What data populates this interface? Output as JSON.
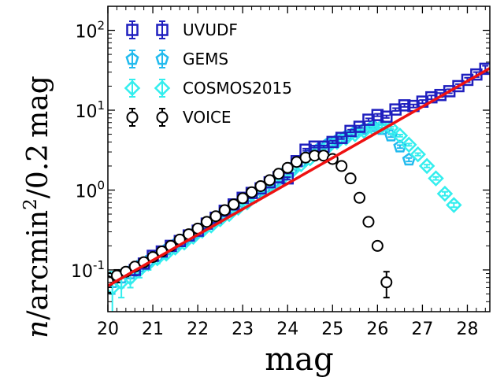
{
  "chart_data": {
    "type": "scatter",
    "xlabel": "mag",
    "ylabel": "n/arcmin²/0.2 mag",
    "ylabel_parts": {
      "n": "n",
      "slash1": "/",
      "arcmin": "arcmin",
      "exp": "2",
      "slash2": "/",
      "num": "0.2",
      "mag": "mag"
    },
    "xlim": [
      20,
      28.5
    ],
    "ylim": [
      0.03,
      200
    ],
    "yscale": "log",
    "grid": false,
    "legend_position": "top-left",
    "x_ticks": [
      "20",
      "21",
      "22",
      "23",
      "24",
      "25",
      "26",
      "27",
      "28"
    ],
    "y_ticks": [
      {
        "value": 0.1,
        "base": "10",
        "exp": "-1"
      },
      {
        "value": 1,
        "base": "10",
        "exp": "0"
      },
      {
        "value": 10,
        "base": "10",
        "exp": "1"
      },
      {
        "value": 100,
        "base": "10",
        "exp": "2"
      }
    ],
    "series": [
      {
        "name": "UVUDF",
        "marker": "square",
        "color": "#1f1fbf",
        "x": [
          20.6,
          20.8,
          21.0,
          21.2,
          21.4,
          21.6,
          21.8,
          22.0,
          22.2,
          22.4,
          22.6,
          22.8,
          23.0,
          23.2,
          23.4,
          23.6,
          23.8,
          24.0,
          24.2,
          24.4,
          24.6,
          24.8,
          25.0,
          25.2,
          25.4,
          25.6,
          25.8,
          26.0,
          26.2,
          26.4,
          26.6,
          26.8,
          27.0,
          27.2,
          27.4,
          27.6,
          27.8,
          28.0,
          28.2,
          28.4
        ],
        "y": [
          0.1,
          0.12,
          0.15,
          0.17,
          0.2,
          0.23,
          0.27,
          0.31,
          0.38,
          0.45,
          0.55,
          0.66,
          0.8,
          0.92,
          1.05,
          1.25,
          1.45,
          1.4,
          2.3,
          3.2,
          3.5,
          3.5,
          4.0,
          4.5,
          5.5,
          6.2,
          7.6,
          8.7,
          8.3,
          10.2,
          11.5,
          11.3,
          12.8,
          14.5,
          15.5,
          17.3,
          20.0,
          24.0,
          28.0,
          33.0
        ],
        "yerr": [
          0.015,
          0.015,
          0.015,
          0.015,
          0.015,
          0.02,
          0.02,
          0.02,
          0.02,
          0.02,
          0.02,
          0.03,
          0.03,
          0.03,
          0.04,
          0.04,
          0.05,
          0.05,
          0.1,
          0.1,
          0.1,
          0.1,
          0.15,
          0.15,
          0.2,
          0.2,
          0.3,
          0.3,
          0.3,
          0.4,
          0.5,
          0.5,
          0.6,
          0.8,
          0.9,
          1.0,
          1.2,
          1.5,
          2.0,
          3.0
        ]
      },
      {
        "name": "GEMS",
        "marker": "pentagon",
        "color": "#22bbee",
        "x": [
          20.1,
          20.3,
          20.5,
          20.7,
          20.9,
          21.1,
          21.3,
          21.5,
          21.7,
          21.9,
          22.1,
          22.3,
          22.5,
          22.7,
          22.9,
          23.1,
          23.3,
          23.5,
          23.7,
          23.9,
          24.1,
          24.3,
          24.5,
          24.7,
          24.9,
          25.1,
          25.3,
          25.5,
          25.7,
          25.9,
          26.1,
          26.3,
          26.5,
          26.7
        ],
        "y": [
          0.07,
          0.08,
          0.09,
          0.11,
          0.13,
          0.15,
          0.18,
          0.21,
          0.24,
          0.28,
          0.33,
          0.4,
          0.47,
          0.55,
          0.66,
          0.77,
          0.92,
          1.1,
          1.3,
          1.6,
          1.9,
          2.3,
          2.8,
          3.3,
          3.8,
          4.2,
          4.7,
          5.3,
          5.8,
          6.3,
          5.8,
          4.8,
          3.5,
          2.4
        ],
        "yerr": [
          0.02,
          0.02,
          0.02,
          0.02,
          0.02,
          0.02,
          0.02,
          0.02,
          0.02,
          0.03,
          0.03,
          0.03,
          0.03,
          0.04,
          0.04,
          0.05,
          0.05,
          0.06,
          0.07,
          0.08,
          0.1,
          0.1,
          0.12,
          0.14,
          0.15,
          0.16,
          0.18,
          0.2,
          0.2,
          0.22,
          0.2,
          0.2,
          0.15,
          0.12
        ]
      },
      {
        "name": "COSMOS2015",
        "marker": "diamond",
        "color": "#33eeee",
        "x": [
          20.1,
          20.3,
          20.5,
          20.7,
          20.9,
          21.1,
          21.3,
          21.5,
          21.7,
          21.9,
          22.1,
          22.3,
          22.5,
          22.7,
          22.9,
          23.1,
          23.3,
          23.5,
          23.7,
          23.9,
          24.1,
          24.3,
          24.5,
          24.7,
          24.9,
          25.1,
          25.3,
          25.5,
          25.7,
          25.9,
          26.1,
          26.3,
          26.5,
          26.7,
          26.9,
          27.1,
          27.3,
          27.5,
          27.7
        ],
        "y": [
          0.06,
          0.07,
          0.08,
          0.1,
          0.12,
          0.14,
          0.16,
          0.19,
          0.22,
          0.26,
          0.31,
          0.36,
          0.43,
          0.5,
          0.6,
          0.7,
          0.85,
          1.0,
          1.2,
          1.45,
          1.75,
          2.1,
          2.5,
          3.0,
          3.5,
          4.0,
          4.5,
          5.0,
          5.5,
          6.0,
          6.3,
          6.0,
          4.8,
          3.7,
          2.8,
          2.0,
          1.4,
          0.9,
          0.65
        ],
        "yerr": [
          0.035,
          0.025,
          0.02,
          0.02,
          0.02,
          0.02,
          0.02,
          0.02,
          0.02,
          0.02,
          0.02,
          0.03,
          0.03,
          0.03,
          0.04,
          0.04,
          0.05,
          0.05,
          0.06,
          0.07,
          0.08,
          0.1,
          0.1,
          0.12,
          0.14,
          0.15,
          0.16,
          0.18,
          0.2,
          0.2,
          0.2,
          0.2,
          0.15,
          0.12,
          0.1,
          0.08,
          0.06,
          0.05,
          0.04
        ]
      },
      {
        "name": "VOICE",
        "marker": "circle",
        "color": "#000000",
        "x": [
          20.0,
          20.2,
          20.4,
          20.6,
          20.8,
          21.0,
          21.2,
          21.4,
          21.6,
          21.8,
          22.0,
          22.2,
          22.4,
          22.6,
          22.8,
          23.0,
          23.2,
          23.4,
          23.6,
          23.8,
          24.0,
          24.2,
          24.4,
          24.6,
          24.8,
          25.0,
          25.2,
          25.4,
          25.6,
          25.8,
          26.0,
          26.2
        ],
        "y": [
          0.072,
          0.085,
          0.095,
          0.11,
          0.125,
          0.145,
          0.17,
          0.2,
          0.24,
          0.28,
          0.33,
          0.4,
          0.47,
          0.56,
          0.66,
          0.79,
          0.94,
          1.12,
          1.33,
          1.6,
          1.9,
          2.25,
          2.55,
          2.7,
          2.7,
          2.45,
          2.0,
          1.4,
          0.8,
          0.4,
          0.2,
          0.07
        ],
        "yerr": [
          0.02,
          0.015,
          0.012,
          0.01,
          0.01,
          0.01,
          0.01,
          0.01,
          0.01,
          0.01,
          0.01,
          0.01,
          0.01,
          0.01,
          0.02,
          0.02,
          0.02,
          0.02,
          0.03,
          0.03,
          0.03,
          0.04,
          0.04,
          0.05,
          0.05,
          0.05,
          0.05,
          0.04,
          0.03,
          0.03,
          0.02,
          0.025
        ]
      }
    ],
    "fit_line": {
      "color": "#ee1111",
      "x": [
        20.0,
        28.5
      ],
      "y": [
        0.063,
        33.5
      ]
    }
  }
}
